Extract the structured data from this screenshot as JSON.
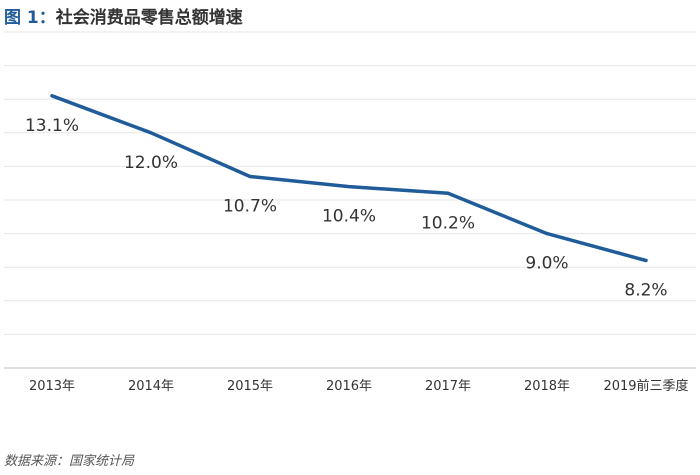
{
  "title": {
    "prefix": "图 1：",
    "text": "社会消费品零售总额增速"
  },
  "source": "数据来源：国家统计局",
  "colors": {
    "line": "#1f5c99",
    "title_accent": "#1f5c99",
    "grid": "#e6e6e6",
    "axis": "#bfbfbf",
    "text": "#333333"
  },
  "chart_data": {
    "type": "line",
    "title": "社会消费品零售总额增速",
    "categories": [
      "2013年",
      "2014年",
      "2015年",
      "2016年",
      "2017年",
      "2018年",
      "2019前三季度"
    ],
    "series": [
      {
        "values": [
          13.1,
          12.0,
          10.7,
          10.4,
          10.2,
          9.0,
          8.2
        ],
        "labels": [
          "13.1%",
          "12.0%",
          "10.7%",
          "10.4%",
          "10.2%",
          "9.0%",
          "8.2%"
        ]
      }
    ],
    "ylim": [
      5.0,
      15.0
    ],
    "grid": true,
    "y_axis_labels_shown": false,
    "legend": "none"
  }
}
